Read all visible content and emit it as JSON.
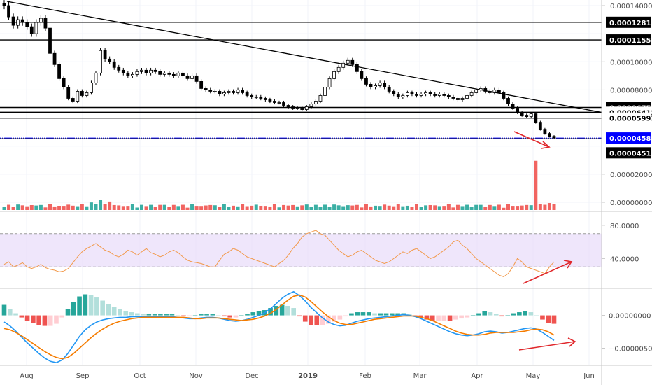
{
  "chart_data": [
    {
      "type": "candlestick",
      "panel": "price",
      "y_ticks": [
        "0.00014000",
        "0.00010000",
        "0.00008000",
        "0.00002000",
        "0.00000000"
      ],
      "ylim": [
        0,
        0.000142
      ],
      "close_series": [
        0.00014,
        0.000132,
        0.000126,
        0.00013,
        0.000128,
        0.000125,
        0.00012,
        0.000128,
        0.000131,
        0.000124,
        0.000106,
        9.8e-05,
        8.8e-05,
        8.2e-05,
        7.4e-05,
        7.2e-05,
        7.9e-05,
        7.6e-05,
        7.8e-05,
        8.5e-05,
        9.2e-05,
        0.000108,
        0.000102,
        0.0001,
        9.6e-05,
        9.4e-05,
        9.2e-05,
        9e-05,
        9.1e-05,
        9.3e-05,
        9.4e-05,
        9.2e-05,
        9.4e-05,
        9.3e-05,
        9.1e-05,
        9.2e-05,
        9.1e-05,
        9e-05,
        9.2e-05,
        9e-05,
        8.8e-05,
        9e-05,
        8.6e-05,
        8.1e-05,
        8e-05,
        7.9e-05,
        7.9e-05,
        7.7e-05,
        7.8e-05,
        7.9e-05,
        7.8e-05,
        8e-05,
        7.8e-05,
        7.6e-05,
        7.5e-05,
        7.5e-05,
        7.4e-05,
        7.3e-05,
        7.2e-05,
        7.1e-05,
        7.1e-05,
        6.9e-05,
        6.8e-05,
        6.7e-05,
        6.7e-05,
        6.6e-05,
        6.8e-05,
        7e-05,
        7.2e-05,
        7.6e-05,
        8.2e-05,
        8.8e-05,
        9.3e-05,
        9.6e-05,
        9.9e-05,
        0.000101,
        9.8e-05,
        9.3e-05,
        8.8e-05,
        8.4e-05,
        8.2e-05,
        8.3e-05,
        8.5e-05,
        8.2e-05,
        7.9e-05,
        7.7e-05,
        7.5e-05,
        7.6e-05,
        7.8e-05,
        7.7e-05,
        7.6e-05,
        7.7e-05,
        7.8e-05,
        7.7e-05,
        7.6e-05,
        7.7e-05,
        7.6e-05,
        7.5e-05,
        7.4e-05,
        7.3e-05,
        7.4e-05,
        7.6e-05,
        7.8e-05,
        8e-05,
        8.1e-05,
        7.9e-05,
        7.8e-05,
        8e-05,
        7.8e-05,
        7.4e-05,
        7e-05,
        6.7e-05,
        6.4e-05,
        6.2e-05,
        6.1e-05,
        6.3e-05,
        5.7e-05,
        5.2e-05,
        4.9e-05,
        4.7e-05,
        4.6e-05
      ]
    },
    {
      "type": "horizontal_levels",
      "panel": "price",
      "levels": [
        {
          "value": 0.00012814,
          "label": "0.00012814"
        },
        {
          "value": 0.00011556,
          "label": "0.00011556"
        },
        {
          "value": 6.751e-05,
          "label": "0.00006751"
        },
        {
          "value": 6.412e-05,
          "label": "0.00006412"
        },
        {
          "value": 5.993e-05,
          "label": "0.00005993"
        },
        {
          "value": 4.58e-05,
          "label": "0.00004580",
          "highlight": true,
          "color": "#0000ff"
        },
        {
          "value": 4.518e-05,
          "label": "0.00004518"
        }
      ],
      "trendline": {
        "from": 0.000143,
        "to": 6.4e-05
      }
    },
    {
      "type": "bar",
      "panel": "volume",
      "up_color": "#26a69a",
      "down_color": "#ef5350",
      "spike_value": 3.5e-05
    },
    {
      "type": "line",
      "panel": "rsi",
      "y_ticks": [
        "80.0000",
        "40.0000"
      ],
      "band": [
        30,
        70
      ],
      "ylim": [
        10,
        90
      ],
      "values": [
        33,
        36,
        30,
        32,
        35,
        30,
        28,
        30,
        33,
        29,
        27,
        26,
        24,
        25,
        28,
        35,
        42,
        48,
        52,
        55,
        58,
        54,
        50,
        48,
        44,
        42,
        45,
        50,
        48,
        44,
        48,
        52,
        47,
        45,
        42,
        44,
        48,
        50,
        47,
        42,
        38,
        36,
        35,
        34,
        32,
        30,
        30,
        38,
        45,
        48,
        52,
        50,
        46,
        42,
        40,
        38,
        36,
        34,
        32,
        30,
        34,
        38,
        44,
        52,
        58,
        66,
        70,
        72,
        74,
        70,
        68,
        62,
        56,
        50,
        46,
        42,
        44,
        48,
        50,
        46,
        42,
        38,
        36,
        34,
        36,
        40,
        44,
        48,
        46,
        50,
        52,
        48,
        44,
        40,
        42,
        46,
        50,
        54,
        60,
        62,
        56,
        52,
        46,
        40,
        36,
        32,
        28,
        24,
        20,
        18,
        22,
        30,
        40,
        36,
        30,
        28,
        26,
        24,
        22,
        30,
        36
      ]
    },
    {
      "type": "line",
      "panel": "macd",
      "y_ticks": [
        "0.00000000",
        "−0.00000500"
      ],
      "ylim": [
        -7.5e-06,
        4e-06
      ],
      "series": [
        {
          "color": "#2196f3",
          "values": [
            -1e-06,
            -1.6e-06,
            -2.4e-06,
            -3.3e-06,
            -4.2e-06,
            -5e-06,
            -5.8e-06,
            -6.5e-06,
            -7e-06,
            -7.2e-06,
            -6.8e-06,
            -5.8e-06,
            -4.5e-06,
            -3.2e-06,
            -2.2e-06,
            -1.5e-06,
            -1e-06,
            -7e-07,
            -5e-07,
            -4e-07,
            -3e-07,
            -3e-07,
            -2e-07,
            -2e-07,
            -2e-07,
            -2e-07,
            -2e-07,
            -2e-07,
            -2e-07,
            -2e-07,
            -3e-07,
            -4e-07,
            -5e-07,
            -5e-07,
            -4e-07,
            -3e-07,
            -3e-07,
            -4e-07,
            -6e-07,
            -8e-07,
            -9e-07,
            -8e-07,
            -6e-07,
            -3e-07,
            0.0,
            4e-07,
            1e-06,
            1.8e-06,
            2.6e-06,
            3.2e-06,
            3.6e-06,
            3e-06,
            2.2e-06,
            1.2e-06,
            4e-07,
            -4e-07,
            -1e-06,
            -1.4e-06,
            -1.6e-06,
            -1.5e-06,
            -1.2e-06,
            -9e-07,
            -7e-07,
            -5e-07,
            -4e-07,
            -3e-07,
            -2e-07,
            -1e-07,
            0.0,
            1e-07,
            0.0,
            -2e-07,
            -5e-07,
            -9e-07,
            -1.3e-06,
            -1.7e-06,
            -2.1e-06,
            -2.5e-06,
            -2.8e-06,
            -3e-06,
            -3.1e-06,
            -3e-06,
            -2.8e-06,
            -2.5e-06,
            -2.4e-06,
            -2.5e-06,
            -2.7e-06,
            -2.6e-06,
            -2.4e-06,
            -2.2e-06,
            -2e-06,
            -1.9e-06,
            -2.1e-06,
            -2.6e-06,
            -3.2e-06,
            -3.8e-06
          ]
        },
        {
          "color": "#f57c00",
          "values": [
            -2e-06,
            -2.2e-06,
            -2.6e-06,
            -3.1e-06,
            -3.7e-06,
            -4.3e-06,
            -4.9e-06,
            -5.5e-06,
            -6e-06,
            -6.4e-06,
            -6.6e-06,
            -6.4e-06,
            -5.8e-06,
            -5e-06,
            -4.2e-06,
            -3.4e-06,
            -2.7e-06,
            -2.1e-06,
            -1.6e-06,
            -1.2e-06,
            -9e-07,
            -7e-07,
            -5e-07,
            -4e-07,
            -3e-07,
            -3e-07,
            -3e-07,
            -3e-07,
            -3e-07,
            -3e-07,
            -3e-07,
            -3e-07,
            -4e-07,
            -5e-07,
            -5e-07,
            -4e-07,
            -4e-07,
            -4e-07,
            -5e-07,
            -6e-07,
            -7e-07,
            -8e-07,
            -7e-07,
            -6e-07,
            -4e-07,
            -1e-07,
            3e-07,
            9e-07,
            1.6e-06,
            2.3e-06,
            2.9e-06,
            3.1e-06,
            2.8e-06,
            2.1e-06,
            1.3e-06,
            5e-07,
            -2e-07,
            -8e-07,
            -1.2e-06,
            -1.4e-06,
            -1.4e-06,
            -1.2e-06,
            -1e-06,
            -8e-07,
            -6e-07,
            -5e-07,
            -4e-07,
            -3e-07,
            -2e-07,
            -1e-07,
            -1e-07,
            -1e-07,
            -3e-07,
            -5e-07,
            -8e-07,
            -1.2e-06,
            -1.6e-06,
            -2e-06,
            -2.4e-06,
            -2.7e-06,
            -2.9e-06,
            -3e-06,
            -3e-06,
            -2.9e-06,
            -2.7e-06,
            -2.6e-06,
            -2.6e-06,
            -2.6e-06,
            -2.6e-06,
            -2.5e-06,
            -2.4e-06,
            -2.2e-06,
            -2.1e-06,
            -2.2e-06,
            -2.5e-06,
            -3e-06
          ]
        }
      ]
    }
  ],
  "x_axis": {
    "labels": [
      "Aug",
      "Sep",
      "Oct",
      "Nov",
      "Dec",
      "2019",
      "Feb",
      "Mar",
      "Apr",
      "May",
      "Jun"
    ],
    "highlight": "2019"
  },
  "colors": {
    "candle": "#000000",
    "rsi_band": "#e8dcfa",
    "rsi_line": "#f2994a",
    "divergence_arrow": "#e0262a",
    "grid": "#f0f3fa"
  }
}
